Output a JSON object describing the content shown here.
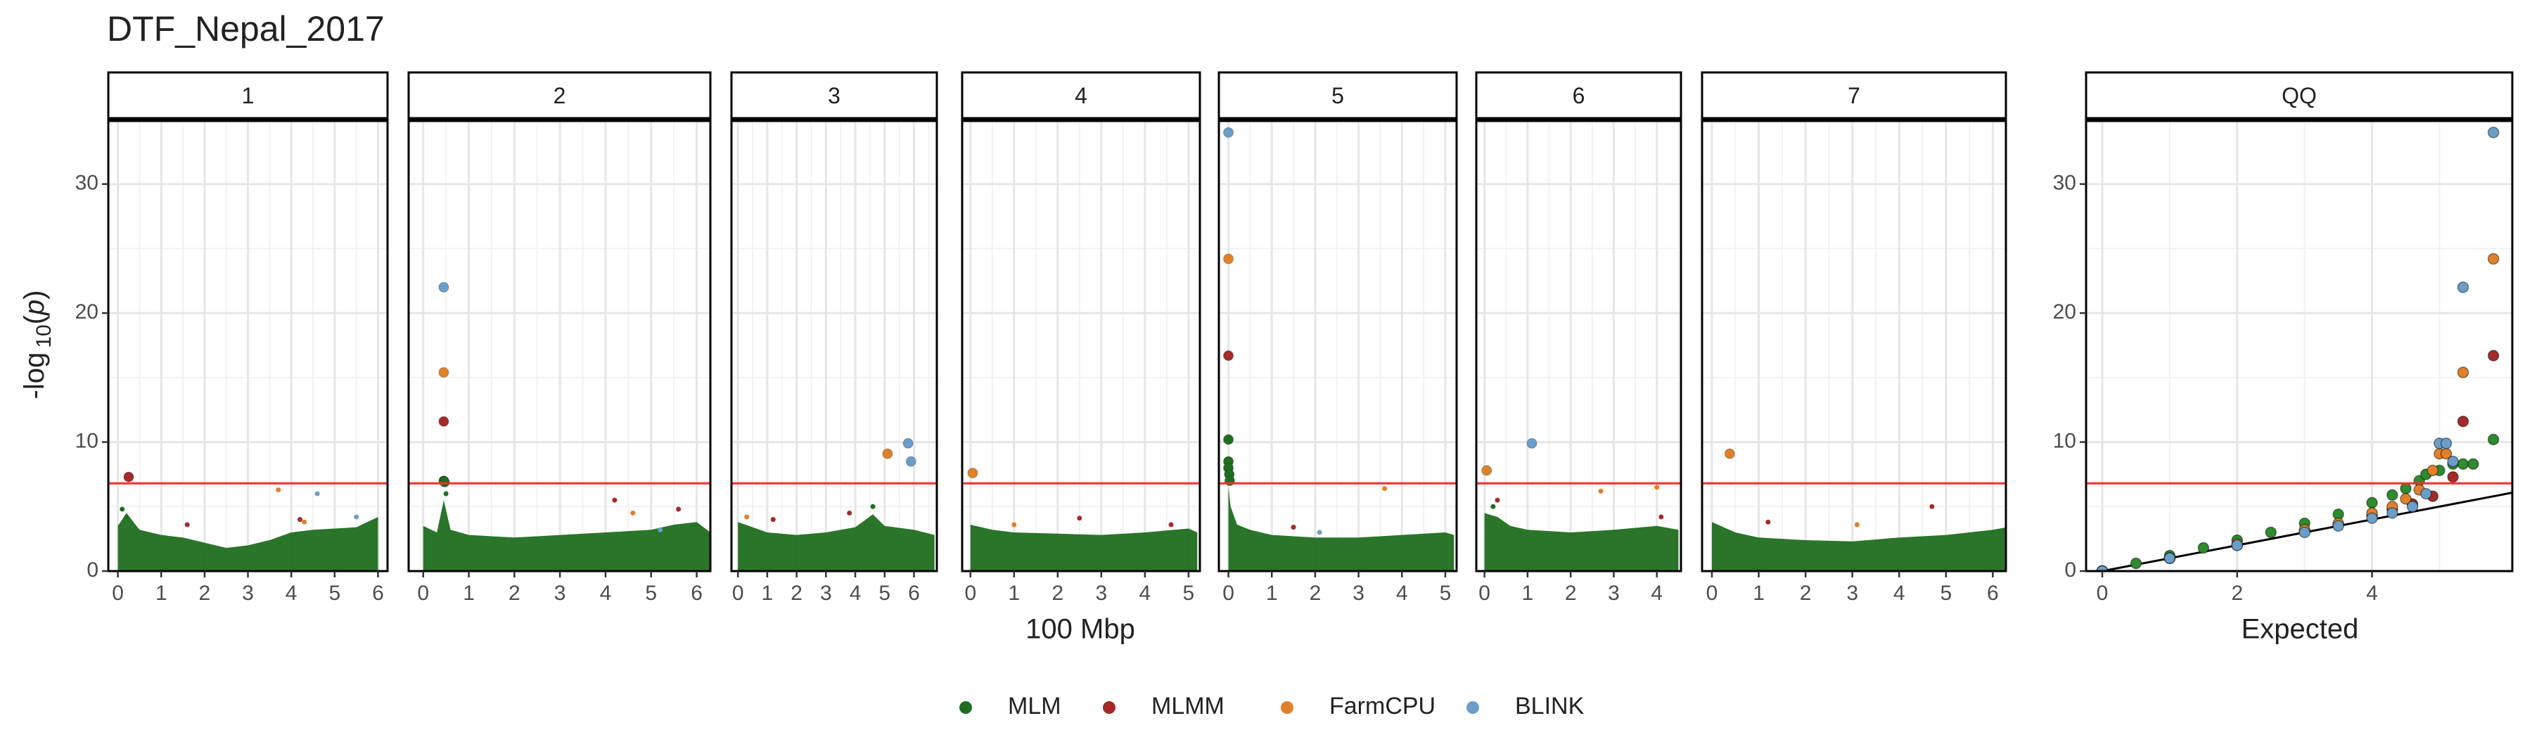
{
  "title": "DTF_Nepal_2017",
  "ylabel": {
    "main": "-log",
    "sub": "10",
    "open": "(",
    "var": "p",
    "close": ")"
  },
  "xlabel": "100 Mbp",
  "chart_data": [
    {
      "type": "scatter",
      "facet": "1",
      "xlim": [
        -0.22,
        6.22
      ],
      "xticks": [
        0,
        1,
        2,
        3,
        4,
        5,
        6
      ],
      "ylim": [
        0,
        35
      ],
      "yticks": [
        0,
        10,
        20,
        30
      ],
      "grid": true,
      "hline": 6.8,
      "band": {
        "x": [
          0,
          0.2,
          0.5,
          1,
          1.5,
          2,
          2.5,
          3,
          3.5,
          4,
          4.5,
          5,
          5.5,
          6
        ],
        "values": [
          3.5,
          4.5,
          3.2,
          2.8,
          2.6,
          2.2,
          1.8,
          2,
          2.4,
          3,
          3.2,
          3.3,
          3.4,
          4.2
        ]
      },
      "series": [
        {
          "name": "MLM",
          "color": "#1f6e1f",
          "x": [
            0.1,
            0.2
          ],
          "values": [
            4.8,
            4.2
          ]
        },
        {
          "name": "MLMM",
          "color": "#a52a2a",
          "x": [
            0.25,
            1.6,
            4.2
          ],
          "values": [
            7.3,
            3.6,
            4.0
          ]
        },
        {
          "name": "FarmCPU",
          "color": "#e08028",
          "x": [
            3.7,
            4.3
          ],
          "values": [
            6.3,
            3.8
          ]
        },
        {
          "name": "BLINK",
          "color": "#6a9ec8",
          "x": [
            4.6,
            5.5
          ],
          "values": [
            6.0,
            4.2
          ]
        }
      ]
    },
    {
      "type": "scatter",
      "facet": "2",
      "xlim": [
        -0.32,
        6.3
      ],
      "xticks": [
        0,
        1,
        2,
        3,
        4,
        5,
        6
      ],
      "ylim": [
        0,
        35
      ],
      "yticks": [
        0,
        10,
        20,
        30
      ],
      "grid": true,
      "hline": 6.8,
      "band": {
        "x": [
          0,
          0.3,
          0.45,
          0.6,
          1,
          2,
          3,
          4,
          5,
          5.5,
          6,
          6.3
        ],
        "values": [
          3.5,
          3,
          5.5,
          3.2,
          2.8,
          2.6,
          2.8,
          3,
          3.2,
          3.6,
          3.8,
          3
        ]
      },
      "series": [
        {
          "name": "MLM",
          "color": "#1f6e1f",
          "x": [
            0.45,
            0.47,
            0.5
          ],
          "values": [
            7.0,
            6.9,
            6.0
          ]
        },
        {
          "name": "MLMM",
          "color": "#a52a2a",
          "x": [
            0.45,
            4.2,
            5.6
          ],
          "values": [
            11.6,
            5.5,
            4.8
          ]
        },
        {
          "name": "FarmCPU",
          "color": "#e08028",
          "x": [
            0.45,
            4.6
          ],
          "values": [
            15.4,
            4.5
          ]
        },
        {
          "name": "BLINK",
          "color": "#6a9ec8",
          "x": [
            0.45,
            5.2
          ],
          "values": [
            22,
            3.2
          ]
        }
      ]
    },
    {
      "type": "scatter",
      "facet": "3",
      "xlim": [
        -0.22,
        6.78
      ],
      "xticks": [
        0,
        1,
        2,
        3,
        4,
        5,
        6
      ],
      "ylim": [
        0,
        35
      ],
      "yticks": [
        0,
        10,
        20,
        30
      ],
      "grid": true,
      "hline": 6.8,
      "band": {
        "x": [
          0,
          0.5,
          1,
          2,
          3,
          4,
          4.6,
          5,
          6,
          6.7
        ],
        "values": [
          3.8,
          3.4,
          3,
          2.8,
          3,
          3.4,
          4.4,
          3.5,
          3.2,
          2.8
        ]
      },
      "series": [
        {
          "name": "MLM",
          "color": "#1f6e1f",
          "x": [
            4.6
          ],
          "values": [
            5.0
          ]
        },
        {
          "name": "MLMM",
          "color": "#a52a2a",
          "x": [
            1.2,
            3.8
          ],
          "values": [
            4.0,
            4.5
          ]
        },
        {
          "name": "FarmCPU",
          "color": "#e08028",
          "x": [
            5.1,
            0.3
          ],
          "values": [
            9.1,
            4.2
          ]
        },
        {
          "name": "BLINK",
          "color": "#6a9ec8",
          "x": [
            5.8,
            5.9
          ],
          "values": [
            9.9,
            8.5
          ]
        }
      ]
    },
    {
      "type": "scatter",
      "facet": "4",
      "xlim": [
        -0.19,
        5.26
      ],
      "xticks": [
        0,
        1,
        2,
        3,
        4,
        5
      ],
      "ylim": [
        0,
        35
      ],
      "yticks": [
        0,
        10,
        20,
        30
      ],
      "grid": true,
      "hline": 6.8,
      "band": {
        "x": [
          0,
          0.5,
          1,
          2,
          3,
          4,
          5,
          5.2
        ],
        "values": [
          3.6,
          3.2,
          3,
          2.9,
          2.8,
          3,
          3.3,
          3
        ]
      },
      "series": [
        {
          "name": "MLM",
          "color": "#1f6e1f",
          "x": [],
          "values": []
        },
        {
          "name": "MLMM",
          "color": "#a52a2a",
          "x": [
            2.5,
            4.6
          ],
          "values": [
            4.1,
            3.6
          ]
        },
        {
          "name": "FarmCPU",
          "color": "#e08028",
          "x": [
            0.05,
            1.0
          ],
          "values": [
            7.6,
            3.6
          ]
        },
        {
          "name": "BLINK",
          "color": "#6a9ec8",
          "x": [],
          "values": []
        }
      ]
    },
    {
      "type": "scatter",
      "facet": "5",
      "xlim": [
        -0.22,
        5.26
      ],
      "xticks": [
        0,
        1,
        2,
        3,
        4,
        5
      ],
      "ylim": [
        0,
        35
      ],
      "yticks": [
        0,
        10,
        20,
        30
      ],
      "grid": true,
      "hline": 6.8,
      "band": {
        "x": [
          0,
          0.05,
          0.2,
          0.5,
          1,
          2,
          3,
          4,
          5,
          5.2
        ],
        "values": [
          6.5,
          5,
          3.6,
          3.2,
          2.8,
          2.6,
          2.6,
          2.8,
          3,
          2.8
        ]
      },
      "series": [
        {
          "name": "MLM",
          "color": "#1f6e1f",
          "x": [
            0,
            0,
            0,
            0.02,
            0.03
          ],
          "values": [
            10.2,
            8.5,
            8.0,
            7.5,
            7.0
          ]
        },
        {
          "name": "MLMM",
          "color": "#a52a2a",
          "x": [
            0,
            1.5
          ],
          "values": [
            16.7,
            3.4
          ]
        },
        {
          "name": "FarmCPU",
          "color": "#e08028",
          "x": [
            0,
            3.6
          ],
          "values": [
            24.2,
            6.4
          ]
        },
        {
          "name": "BLINK",
          "color": "#6a9ec8",
          "x": [
            0,
            2.1
          ],
          "values": [
            34,
            3.0
          ]
        }
      ]
    },
    {
      "type": "scatter",
      "facet": "6",
      "xlim": [
        -0.19,
        4.56
      ],
      "xticks": [
        0,
        1,
        2,
        3,
        4
      ],
      "ylim": [
        0,
        35
      ],
      "yticks": [
        0,
        10,
        20,
        30
      ],
      "grid": true,
      "hline": 6.8,
      "band": {
        "x": [
          0,
          0.3,
          0.6,
          1,
          2,
          3,
          4,
          4.5
        ],
        "values": [
          4.5,
          4.2,
          3.5,
          3.2,
          3,
          3.2,
          3.5,
          3.2
        ]
      },
      "series": [
        {
          "name": "MLM",
          "color": "#1f6e1f",
          "x": [
            0.2
          ],
          "values": [
            5.0
          ]
        },
        {
          "name": "MLMM",
          "color": "#a52a2a",
          "x": [
            0.3,
            4.1
          ],
          "values": [
            5.5,
            4.2
          ]
        },
        {
          "name": "FarmCPU",
          "color": "#e08028",
          "x": [
            0.05,
            2.7,
            4.0
          ],
          "values": [
            7.8,
            6.2,
            6.5
          ]
        },
        {
          "name": "BLINK",
          "color": "#6a9ec8",
          "x": [
            1.1
          ],
          "values": [
            9.9
          ]
        }
      ]
    },
    {
      "type": "scatter",
      "facet": "7",
      "xlim": [
        -0.21,
        6.28
      ],
      "xticks": [
        0,
        1,
        2,
        3,
        4,
        5,
        6
      ],
      "ylim": [
        0,
        35
      ],
      "yticks": [
        0,
        10,
        20,
        30
      ],
      "grid": true,
      "hline": 6.8,
      "band": {
        "x": [
          0,
          0.5,
          1,
          2,
          3,
          4,
          5,
          6,
          6.3
        ],
        "values": [
          3.8,
          3,
          2.6,
          2.4,
          2.3,
          2.6,
          2.8,
          3.2,
          3.4
        ]
      },
      "series": [
        {
          "name": "MLM",
          "color": "#1f6e1f",
          "x": [],
          "values": []
        },
        {
          "name": "MLMM",
          "color": "#a52a2a",
          "x": [
            4.7,
            1.2
          ],
          "values": [
            5.0,
            3.8
          ]
        },
        {
          "name": "FarmCPU",
          "color": "#e08028",
          "x": [
            0.38,
            3.1
          ],
          "values": [
            9.1,
            3.6
          ]
        },
        {
          "name": "BLINK",
          "color": "#6a9ec8",
          "x": [],
          "values": []
        }
      ]
    },
    {
      "type": "qq",
      "facet": "QQ",
      "xlabel": "Expected",
      "xlim": [
        -0.24,
        6.08
      ],
      "xticks": [
        0,
        2,
        4
      ],
      "ylim": [
        0,
        35
      ],
      "yticks": [
        0,
        10,
        20,
        30
      ],
      "grid": true,
      "hline": 6.8,
      "abline": {
        "slope": 1,
        "intercept": 0
      },
      "series": [
        {
          "name": "MLM",
          "color": "#2e8b2e",
          "x": [
            0,
            0.5,
            1,
            1.5,
            2,
            2.5,
            3,
            3.5,
            4,
            4.3,
            4.5,
            4.7,
            4.8,
            5.0,
            5.2,
            5.35,
            5.5,
            5.8
          ],
          "values": [
            0,
            0.6,
            1.2,
            1.8,
            2.4,
            3.0,
            3.7,
            4.4,
            5.3,
            5.9,
            6.4,
            7.0,
            7.5,
            7.8,
            8.3,
            8.3,
            8.3,
            10.2
          ]
        },
        {
          "name": "MLMM",
          "color": "#a52a2a",
          "x": [
            0,
            1,
            2,
            3,
            3.5,
            4,
            4.3,
            4.6,
            4.9,
            5.2,
            5.35,
            5.8
          ],
          "values": [
            0,
            1.0,
            2.0,
            3.1,
            3.6,
            4.3,
            4.8,
            5.2,
            5.8,
            7.3,
            11.6,
            16.7
          ]
        },
        {
          "name": "FarmCPU",
          "color": "#e08028",
          "x": [
            0,
            1,
            2,
            3,
            3.5,
            4,
            4.3,
            4.5,
            4.7,
            4.9,
            5.0,
            5.1,
            5.35,
            5.8
          ],
          "values": [
            0,
            1.0,
            2.1,
            3.2,
            3.7,
            4.5,
            5.0,
            5.6,
            6.3,
            7.8,
            9.1,
            9.1,
            15.4,
            24.2
          ]
        },
        {
          "name": "BLINK",
          "color": "#6a9ec8",
          "x": [
            0,
            1,
            2,
            3,
            3.5,
            4,
            4.3,
            4.6,
            4.8,
            5.0,
            5.1,
            5.2,
            5.35,
            5.8
          ],
          "values": [
            0,
            1.0,
            2.0,
            3.0,
            3.5,
            4.1,
            4.5,
            5.0,
            6.0,
            9.9,
            9.9,
            8.5,
            22,
            34
          ]
        }
      ]
    }
  ]
}
